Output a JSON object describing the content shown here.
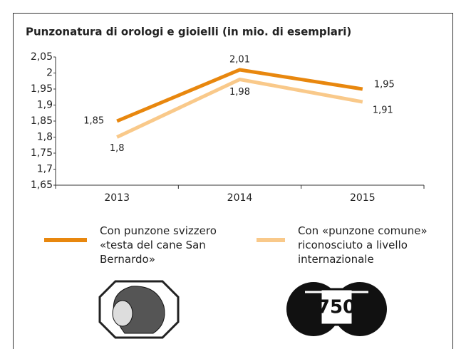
{
  "chart_data": {
    "type": "line",
    "title": "Punzonatura di orologi e gioielli (in mio. di esemplari)",
    "categories": [
      "2013",
      "2014",
      "2015"
    ],
    "series": [
      {
        "name": "Con punzone svizzero «testa del cane San Bernardo»",
        "color": "#e8870e",
        "values": [
          1.85,
          2.01,
          1.95
        ],
        "value_labels": [
          "1,85",
          "2,01",
          "1,95"
        ]
      },
      {
        "name": "Con «punzone comune» riconosciuto a livello internazionale",
        "color": "#f9c98a",
        "values": [
          1.8,
          1.98,
          1.91
        ],
        "value_labels": [
          "1,8",
          "1,98",
          "1,91"
        ]
      }
    ],
    "ylim": [
      1.65,
      2.05
    ],
    "yticks": [
      {
        "value": 1.65,
        "label": "1,65"
      },
      {
        "value": 1.7,
        "label": "1,7"
      },
      {
        "value": 1.75,
        "label": "1,75"
      },
      {
        "value": 1.8,
        "label": "1,8"
      },
      {
        "value": 1.85,
        "label": "1,85"
      },
      {
        "value": 1.9,
        "label": "1,9"
      },
      {
        "value": 1.95,
        "label": "1,95"
      },
      {
        "value": 2,
        "label": "2"
      },
      {
        "value": 2.05,
        "label": "2,05"
      }
    ],
    "grid": false,
    "hallmark_text": "750"
  }
}
